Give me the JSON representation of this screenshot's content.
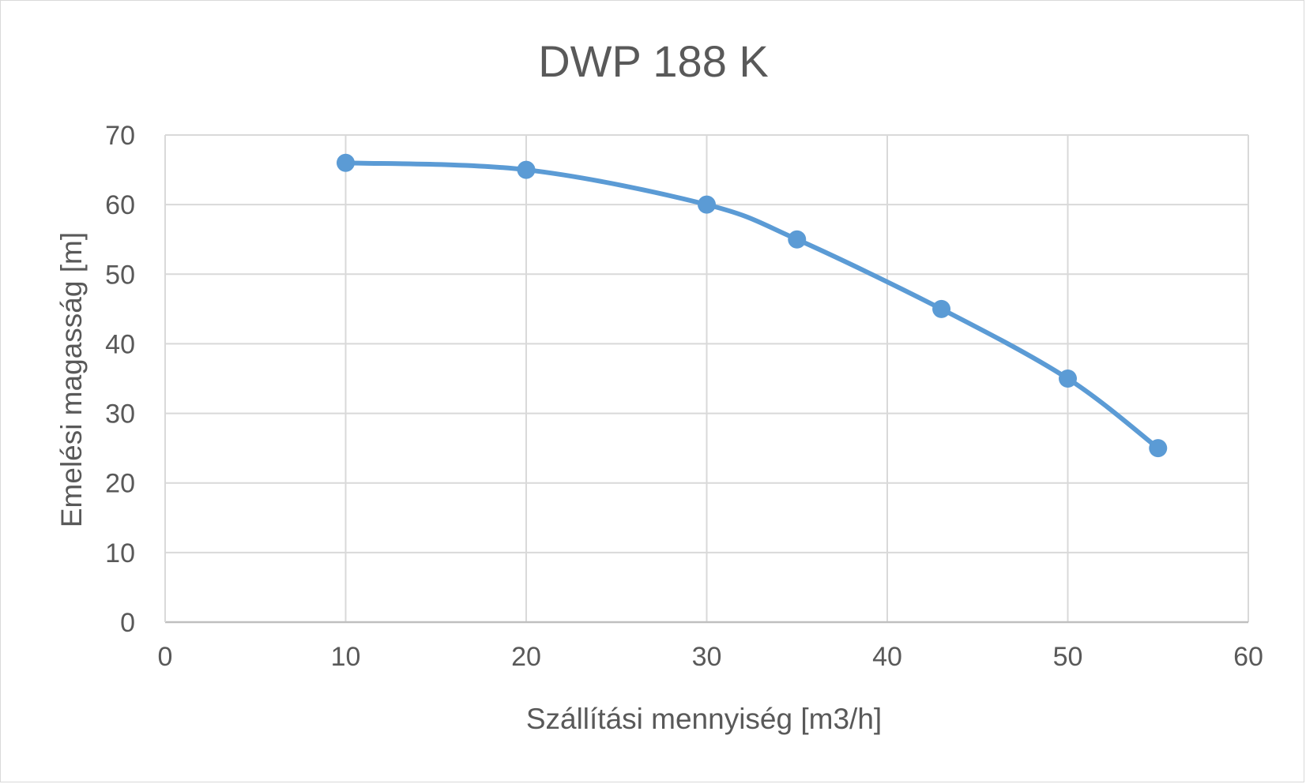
{
  "chart_data": {
    "type": "scatter",
    "title": "DWP 188 K",
    "xlabel": "Szállítási mennyiség [m3/h]",
    "ylabel": "Emelési magasság [m]",
    "xlim": [
      0,
      60
    ],
    "ylim": [
      0,
      70
    ],
    "xticks": [
      "0",
      "10",
      "20",
      "30",
      "40",
      "50",
      "60"
    ],
    "yticks": [
      "0",
      "10",
      "20",
      "30",
      "40",
      "50",
      "60",
      "70"
    ],
    "grid": true,
    "legend": "none",
    "line_color": "#5b9bd5",
    "series": [
      {
        "x": [
          10,
          20,
          30,
          35,
          43,
          50,
          55
        ],
        "y": [
          66,
          65,
          60,
          55,
          45,
          35,
          25
        ],
        "markers": true,
        "smooth": true
      }
    ]
  }
}
